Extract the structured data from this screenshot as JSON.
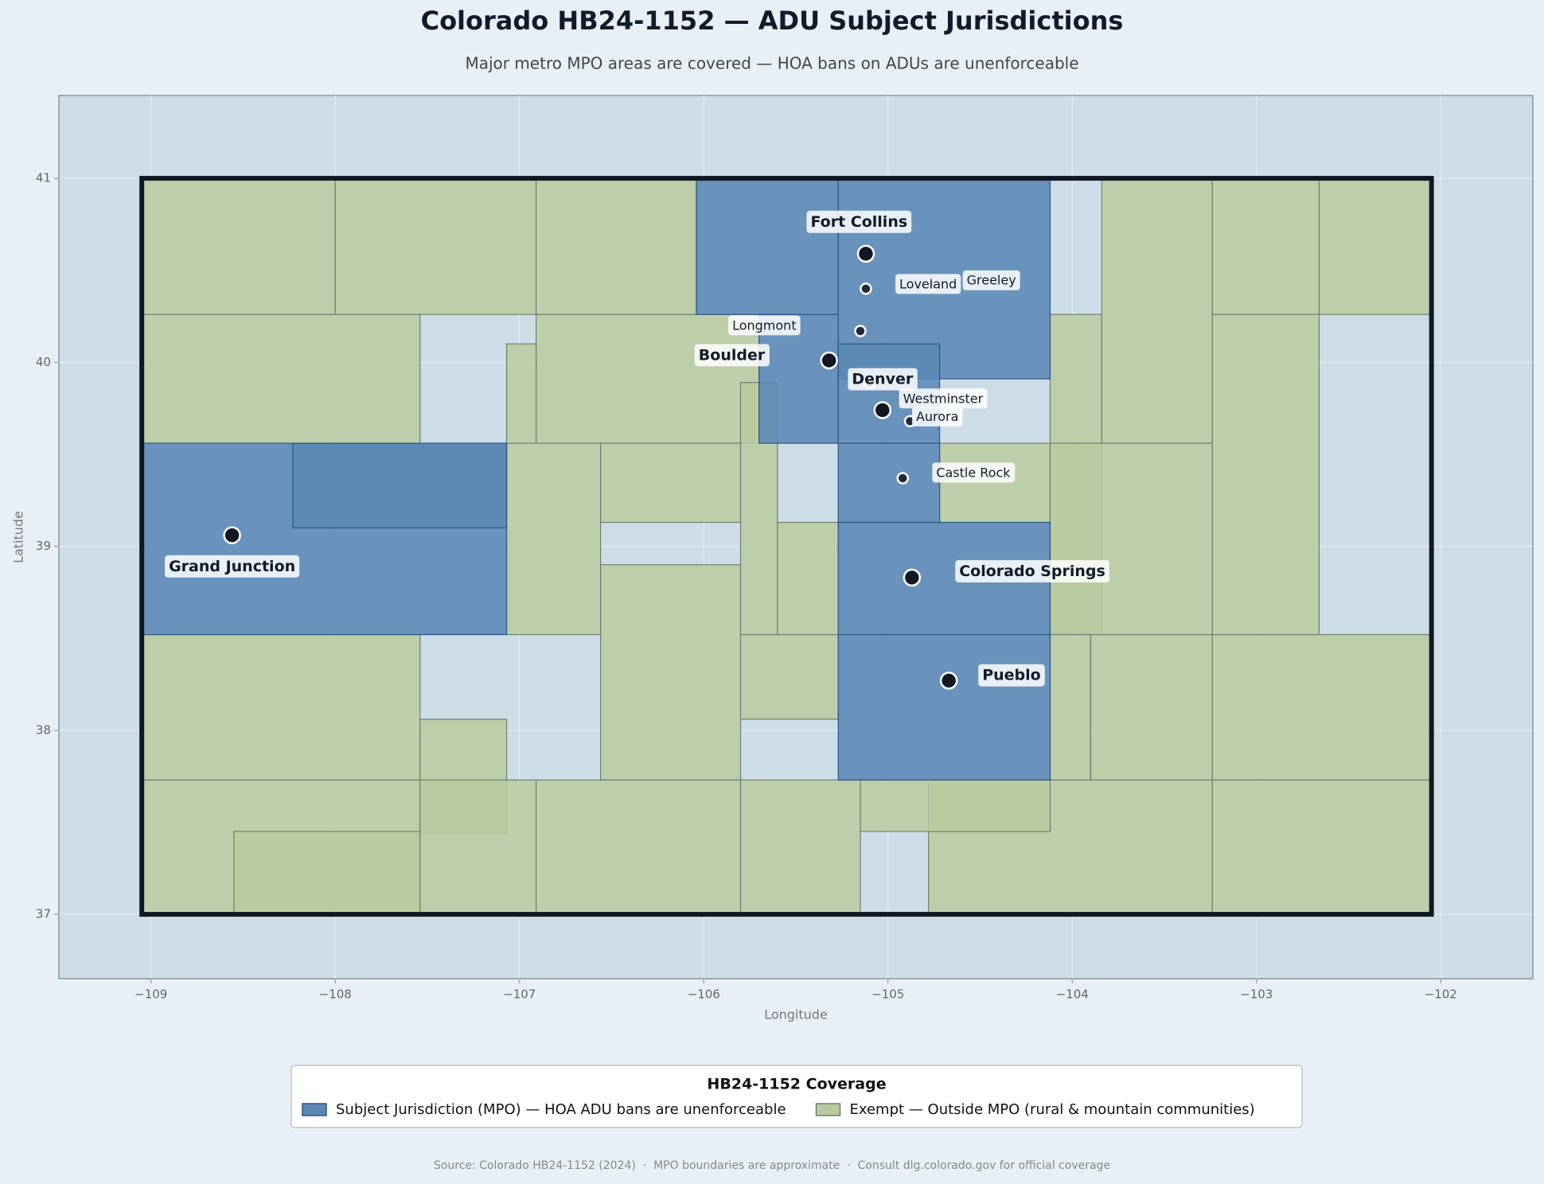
{
  "chart_data": {
    "type": "map",
    "title": "Colorado HB24-1152 — ADU Subject Jurisdictions",
    "subtitle": "Major metro MPO areas are covered — HOA bans on ADUs are unenforceable",
    "x_label": "Longitude",
    "y_label": "Latitude",
    "xlim": [
      -109.5,
      -101.5
    ],
    "ylim": [
      36.65,
      41.45
    ],
    "xticks": [
      {
        "value": -109,
        "label": "−109"
      },
      {
        "value": -108,
        "label": "−108"
      },
      {
        "value": -107,
        "label": "−107"
      },
      {
        "value": -106,
        "label": "−106"
      },
      {
        "value": -105,
        "label": "−105"
      },
      {
        "value": -104,
        "label": "−104"
      },
      {
        "value": -103,
        "label": "−103"
      },
      {
        "value": -102,
        "label": "−102"
      }
    ],
    "yticks": [
      37,
      38,
      39,
      40,
      41
    ],
    "grid": true,
    "state_outline": {
      "lon": [
        -109.05,
        -102.05
      ],
      "lat": [
        37,
        41
      ]
    },
    "legend": {
      "title": "HB24-1152 Coverage",
      "position": "bottom",
      "items": [
        {
          "status": "subject",
          "label": "Subject Jurisdiction (MPO) — HOA ADU bans are unenforceable",
          "color": "#5b87b5"
        },
        {
          "status": "exempt",
          "label": "Exempt — Outside MPO (rural & mountain communities)",
          "color": "#b8cb9f"
        }
      ]
    },
    "regions": [
      {
        "status": "exempt",
        "lon": [
          -109.05,
          -108.0
        ],
        "lat": [
          40.26,
          41.0
        ]
      },
      {
        "status": "exempt",
        "lon": [
          -108.0,
          -106.91
        ],
        "lat": [
          40.26,
          41.0
        ]
      },
      {
        "status": "exempt",
        "lon": [
          -106.91,
          -106.04
        ],
        "lat": [
          40.26,
          41.0
        ]
      },
      {
        "status": "exempt",
        "lon": [
          -109.05,
          -107.54
        ],
        "lat": [
          39.56,
          40.26
        ]
      },
      {
        "status": "exempt",
        "lon": [
          -106.91,
          -105.7
        ],
        "lat": [
          39.56,
          40.26
        ]
      },
      {
        "status": "exempt",
        "lon": [
          -107.07,
          -106.91
        ],
        "lat": [
          39.56,
          40.1
        ]
      },
      {
        "status": "exempt",
        "lon": [
          -104.12,
          -103.84
        ],
        "lat": [
          38.52,
          40.26
        ]
      },
      {
        "status": "exempt",
        "lon": [
          -103.84,
          -103.24
        ],
        "lat": [
          39.56,
          41.0
        ]
      },
      {
        "status": "exempt",
        "lon": [
          -103.24,
          -102.66
        ],
        "lat": [
          40.26,
          41.0
        ]
      },
      {
        "status": "exempt",
        "lon": [
          -102.66,
          -102.05
        ],
        "lat": [
          40.26,
          41.0
        ]
      },
      {
        "status": "exempt",
        "lon": [
          -103.24,
          -102.66
        ],
        "lat": [
          38.52,
          40.26
        ]
      },
      {
        "status": "exempt",
        "lon": [
          -104.12,
          -103.24
        ],
        "lat": [
          38.52,
          39.56
        ]
      },
      {
        "status": "exempt",
        "lon": [
          -104.72,
          -104.12
        ],
        "lat": [
          39.13,
          39.56
        ]
      },
      {
        "status": "exempt",
        "lon": [
          -107.07,
          -106.56
        ],
        "lat": [
          38.52,
          39.56
        ]
      },
      {
        "status": "exempt",
        "lon": [
          -106.56,
          -105.8
        ],
        "lat": [
          39.13,
          39.56
        ]
      },
      {
        "status": "exempt",
        "lon": [
          -106.56,
          -105.8
        ],
        "lat": [
          37.73,
          38.9
        ]
      },
      {
        "status": "exempt",
        "lon": [
          -105.8,
          -105.6
        ],
        "lat": [
          38.52,
          39.89
        ]
      },
      {
        "status": "exempt",
        "lon": [
          -105.6,
          -105.27
        ],
        "lat": [
          38.52,
          39.13
        ]
      },
      {
        "status": "exempt",
        "lon": [
          -105.8,
          -105.27
        ],
        "lat": [
          38.06,
          38.52
        ]
      },
      {
        "status": "exempt",
        "lon": [
          -109.05,
          -107.54
        ],
        "lat": [
          37.73,
          38.52
        ]
      },
      {
        "status": "exempt",
        "lon": [
          -107.54,
          -107.07
        ],
        "lat": [
          37.44,
          38.06
        ]
      },
      {
        "status": "exempt",
        "lon": [
          -104.12,
          -103.9
        ],
        "lat": [
          37.73,
          38.52
        ]
      },
      {
        "status": "exempt",
        "lon": [
          -103.9,
          -103.24
        ],
        "lat": [
          37.73,
          38.52
        ]
      },
      {
        "status": "exempt",
        "lon": [
          -103.24,
          -102.05
        ],
        "lat": [
          37.73,
          38.52
        ]
      },
      {
        "status": "exempt",
        "lon": [
          -109.05,
          -107.54
        ],
        "lat": [
          37.0,
          37.73
        ]
      },
      {
        "status": "exempt",
        "lon": [
          -107.54,
          -106.91
        ],
        "lat": [
          37.0,
          37.73
        ]
      },
      {
        "status": "exempt",
        "lon": [
          -106.91,
          -105.8
        ],
        "lat": [
          37.0,
          37.73
        ]
      },
      {
        "status": "exempt",
        "lon": [
          -105.8,
          -105.15
        ],
        "lat": [
          37.0,
          37.73
        ]
      },
      {
        "status": "exempt",
        "lon": [
          -104.78,
          -103.24
        ],
        "lat": [
          37.0,
          37.73
        ]
      },
      {
        "status": "exempt",
        "lon": [
          -103.24,
          -102.05
        ],
        "lat": [
          37.0,
          37.73
        ]
      },
      {
        "status": "exempt",
        "lon": [
          -105.15,
          -104.12
        ],
        "lat": [
          37.45,
          37.73
        ]
      },
      {
        "status": "exempt",
        "lon": [
          -108.55,
          -107.54
        ],
        "lat": [
          37.0,
          37.45
        ]
      },
      {
        "status": "subject",
        "lon": [
          -106.04,
          -105.27
        ],
        "lat": [
          40.26,
          41.0
        ]
      },
      {
        "status": "subject",
        "lon": [
          -105.27,
          -104.12
        ],
        "lat": [
          39.91,
          41.0
        ]
      },
      {
        "status": "subject",
        "lon": [
          -105.7,
          -105.27
        ],
        "lat": [
          39.56,
          40.26
        ]
      },
      {
        "status": "subject",
        "lon": [
          -105.27,
          -104.72
        ],
        "lat": [
          39.56,
          40.1
        ]
      },
      {
        "status": "subject",
        "lon": [
          -105.27,
          -104.72
        ],
        "lat": [
          39.13,
          39.56
        ]
      },
      {
        "status": "subject",
        "lon": [
          -105.27,
          -104.12
        ],
        "lat": [
          38.52,
          39.13
        ]
      },
      {
        "status": "subject",
        "lon": [
          -105.27,
          -104.12
        ],
        "lat": [
          37.73,
          38.52
        ]
      },
      {
        "status": "subject",
        "lon": [
          -109.05,
          -107.07
        ],
        "lat": [
          38.52,
          39.56
        ]
      },
      {
        "status": "subject",
        "lon": [
          -108.23,
          -107.07
        ],
        "lat": [
          39.1,
          39.56
        ]
      }
    ],
    "cities": [
      {
        "name": "Fort Collins",
        "lon": -105.12,
        "lat": 40.59,
        "major": true
      },
      {
        "name": "Loveland",
        "lon": -105.12,
        "lat": 40.4,
        "major": false
      },
      {
        "name": "Greeley",
        "lon": -104.76,
        "lat": 40.42,
        "major": false
      },
      {
        "name": "Longmont",
        "lon": -105.15,
        "lat": 40.17,
        "major": false
      },
      {
        "name": "Boulder",
        "lon": -105.32,
        "lat": 40.01,
        "major": true
      },
      {
        "name": "Denver",
        "lon": -105.03,
        "lat": 39.74,
        "major": true
      },
      {
        "name": "Westminster",
        "lon": -105.1,
        "lat": 39.89,
        "major": false
      },
      {
        "name": "Aurora",
        "lon": -104.88,
        "lat": 39.68,
        "major": false
      },
      {
        "name": "Castle Rock",
        "lon": -104.92,
        "lat": 39.37,
        "major": false
      },
      {
        "name": "Colorado Springs",
        "lon": -104.87,
        "lat": 38.83,
        "major": true
      },
      {
        "name": "Pueblo",
        "lon": -104.67,
        "lat": 38.27,
        "major": true
      },
      {
        "name": "Grand Junction",
        "lon": -108.56,
        "lat": 39.06,
        "major": true
      }
    ],
    "source": "Source: Colorado HB24-1152 (2024)  ·  MPO boundaries are approximate  ·  Consult dlg.colorado.gov for official coverage"
  }
}
